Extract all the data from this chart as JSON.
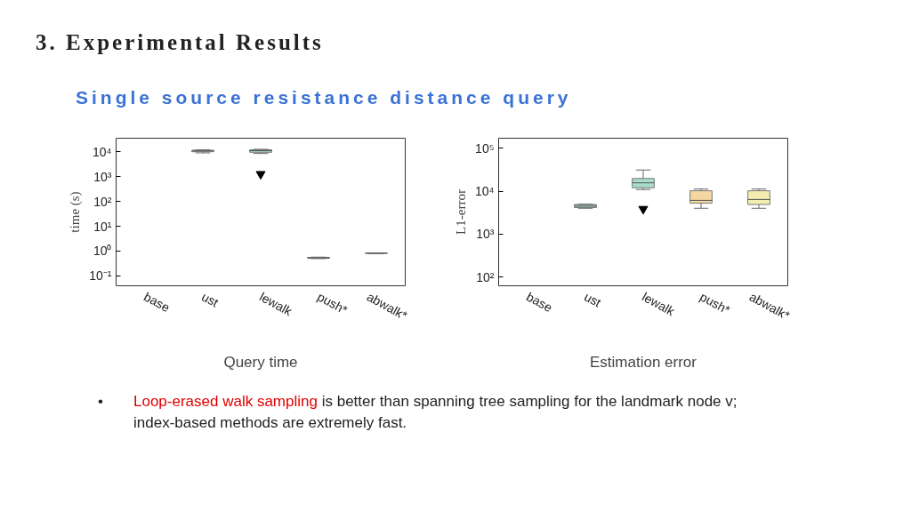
{
  "chart_data": [
    {
      "type": "box",
      "title": "3. Experimental Results",
      "subtitle": "Single source resistance distance query",
      "ylabel": "time (s)",
      "xlabel": "Query time",
      "log": "y",
      "categories": [
        "base",
        "ust",
        "lewalk",
        "push*",
        "abwalk*"
      ],
      "colors": [
        "#a8d0c8",
        "#a8d0c8",
        "#a8dccc",
        "#f5d8a0",
        "#f3eeb0"
      ],
      "boxes": [
        null,
        {
          "low": 9000,
          "q1": 10000,
          "median": 10800,
          "q3": 11500,
          "high": 12000
        },
        {
          "low": 8500,
          "q1": 9500,
          "median": 11000,
          "q3": 12000,
          "high": 12500,
          "outliers": [
            1260
          ]
        },
        {
          "low": 0.5,
          "q1": 0.51,
          "median": 0.53,
          "q3": 0.56,
          "high": 0.57
        },
        {
          "low": 0.81,
          "q1": 0.81,
          "median": 0.82,
          "q3": 0.83,
          "high": 0.83
        }
      ],
      "ylim": [
        0.04,
        35000
      ],
      "yticks": [
        {
          "value": 0.1,
          "label": "10⁻¹"
        },
        {
          "value": 1,
          "label": "10⁰"
        },
        {
          "value": 10,
          "label": "10¹"
        },
        {
          "value": 100,
          "label": "10²"
        },
        {
          "value": 1000,
          "label": "10³"
        },
        {
          "value": 10000,
          "label": "10⁴"
        }
      ],
      "annotations": [
        "•",
        "Loop-erased walk sampling",
        "is better than spanning tree sampling for the landmark node v; index-based methods are extremely fast."
      ]
    },
    {
      "type": "box",
      "ylabel": "L1-error",
      "xlabel": "Estimation error",
      "log": "y",
      "categories": [
        "base",
        "ust",
        "lewalk",
        "push*",
        "abwalk*"
      ],
      "colors": [
        "#a8d0c8",
        "#a8d0c8",
        "#a8dccc",
        "#f5d8a0",
        "#f3eeb0"
      ],
      "boxes": [
        null,
        {
          "low": 4000,
          "q1": 4150,
          "median": 4500,
          "q3": 4900,
          "high": 5000
        },
        {
          "low": 10900,
          "q1": 12000,
          "median": 15600,
          "q3": 19700,
          "high": 31000,
          "outliers": [
            3850
          ]
        },
        {
          "low": 4000,
          "q1": 5250,
          "median": 6100,
          "q3": 10200,
          "high": 11200
        },
        {
          "low": 4000,
          "q1": 4900,
          "median": 6400,
          "q3": 10200,
          "high": 11200
        }
      ],
      "ylim": [
        63,
        170000
      ],
      "yticks": [
        {
          "value": 100,
          "label": "10²"
        },
        {
          "value": 1000,
          "label": "10³"
        },
        {
          "value": 10000,
          "label": "10⁴"
        },
        {
          "value": 100000,
          "label": "10⁵"
        }
      ]
    }
  ]
}
